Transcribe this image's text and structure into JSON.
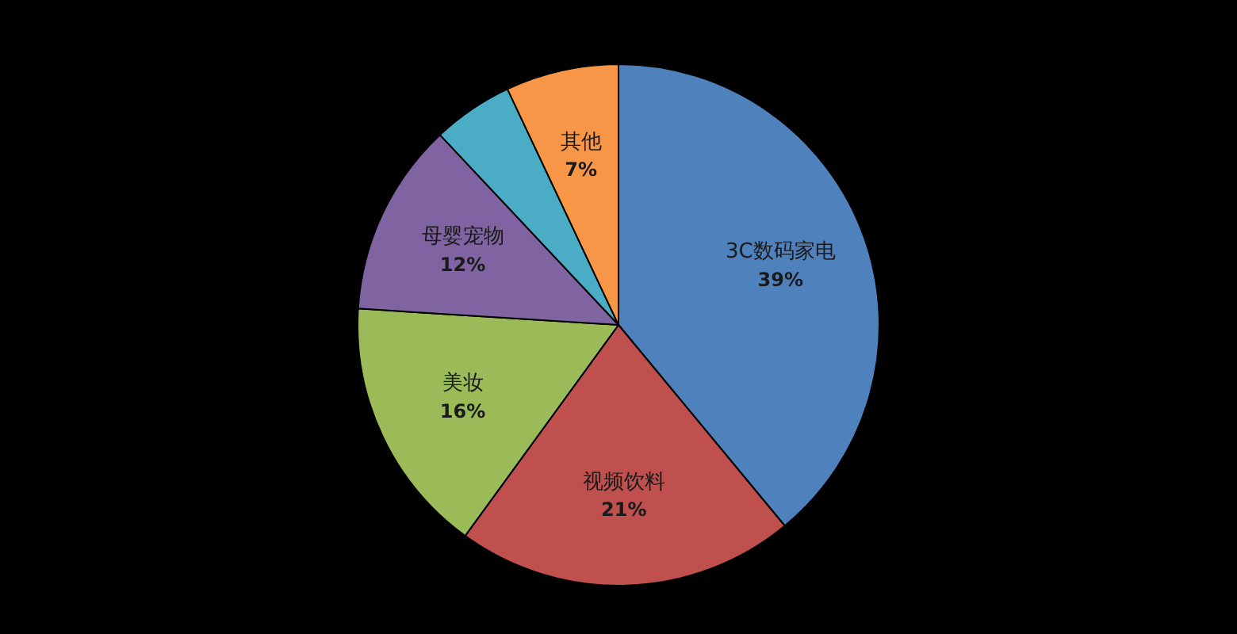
{
  "chart_data": {
    "type": "pie",
    "categories": [
      "3C数码家电",
      "视频饮料",
      "美妆",
      "母婴宠物",
      null,
      "其他"
    ],
    "values": [
      39,
      21,
      16,
      12,
      5,
      7
    ],
    "colors": [
      "#4f81bd",
      "#c0504d",
      "#9bbb59",
      "#8064a2",
      "#4bacc6",
      "#f79646"
    ],
    "value_labels": [
      "39%",
      "21%",
      "16%",
      "12%",
      null,
      "7%"
    ]
  }
}
